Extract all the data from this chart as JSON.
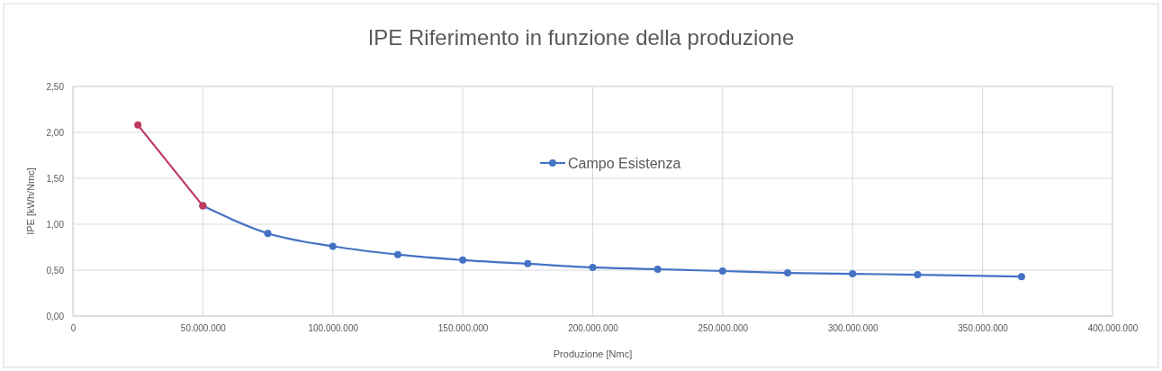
{
  "chart_data": {
    "type": "line",
    "title": "IPE Riferimento in funzione della produzione",
    "xlabel": "Produzione [Nmc]",
    "ylabel": "IPE [kWh/Nmc]",
    "series": [
      {
        "color": "#c0395f",
        "x": [
          25000000,
          50000000
        ],
        "values": [
          2.08,
          1.2
        ]
      },
      {
        "name": "Campo Esistenza",
        "color": "#4472c4",
        "x": [
          50000000,
          75000000,
          100000000,
          125000000,
          150000000,
          175000000,
          200000000,
          225000000,
          250000000,
          275000000,
          300000000,
          325000000,
          365000000
        ],
        "values": [
          1.2,
          0.9,
          0.76,
          0.67,
          0.61,
          0.57,
          0.53,
          0.51,
          0.49,
          0.47,
          0.46,
          0.45,
          0.43
        ]
      }
    ],
    "xlim": [
      0,
      400000000
    ],
    "xticks": [
      0,
      {
        "value": 50000000,
        "label": "50.000.000"
      },
      {
        "value": 100000000,
        "label": "100.000.000"
      },
      {
        "value": 150000000,
        "label": "150.000.000"
      },
      {
        "value": 200000000,
        "label": "200.000.000"
      },
      {
        "value": 250000000,
        "label": "250.000.000"
      },
      {
        "value": 300000000,
        "label": "300.000.000"
      },
      {
        "value": 350000000,
        "label": "350.000.000"
      },
      {
        "value": 400000000,
        "label": "400.000.000"
      }
    ],
    "ylim": [
      0,
      2.5
    ],
    "yticks": [
      {
        "value": 0,
        "label": "0,00"
      },
      {
        "value": 0.5,
        "label": "0,50"
      },
      {
        "value": 1,
        "label": "1,00"
      },
      {
        "value": 1.5,
        "label": "1,50"
      },
      {
        "value": 2,
        "label": "2,00"
      },
      {
        "value": 2.5,
        "label": "2,50"
      }
    ],
    "grid": true,
    "legend": "top",
    "marker": "circle",
    "line_style": "solid"
  }
}
